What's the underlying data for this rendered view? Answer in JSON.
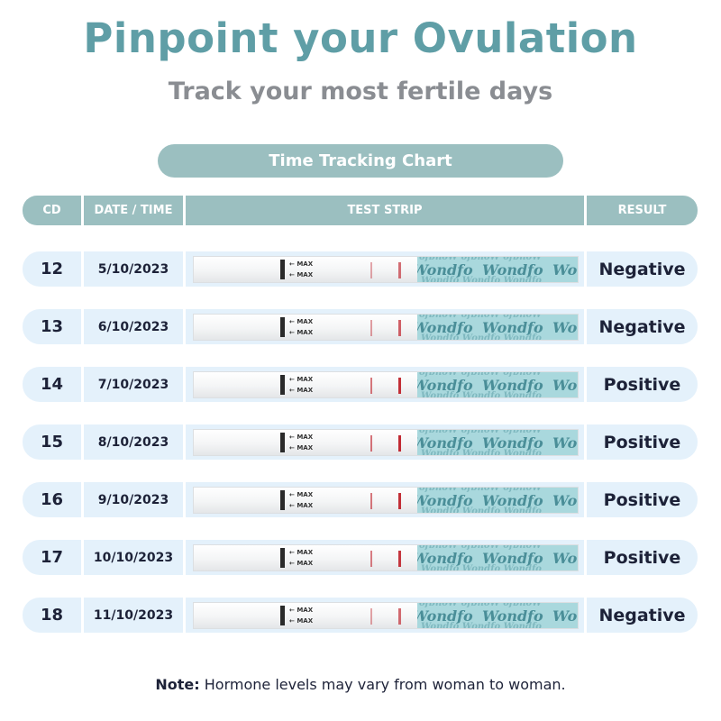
{
  "header": {
    "title": "Pinpoint your Ovulation",
    "subtitle": "Track your most fertile days",
    "chart_label": "Time Tracking Chart"
  },
  "columns": [
    "CD",
    "DATE / TIME",
    "TEST STRIP",
    "RESULT"
  ],
  "strip": {
    "max_label": "MAX",
    "brand": "Wondfo",
    "control_line_color": "#c0262f"
  },
  "rows": [
    {
      "cd": "12",
      "date": "5/10/2023",
      "result": "Negative",
      "test_line_intensity": 0.15
    },
    {
      "cd": "13",
      "date": "6/10/2023",
      "result": "Negative",
      "test_line_intensity": 0.3
    },
    {
      "cd": "14",
      "date": "7/10/2023",
      "result": "Positive",
      "test_line_intensity": 0.9
    },
    {
      "cd": "15",
      "date": "8/10/2023",
      "result": "Positive",
      "test_line_intensity": 0.95
    },
    {
      "cd": "16",
      "date": "9/10/2023",
      "result": "Positive",
      "test_line_intensity": 0.9
    },
    {
      "cd": "17",
      "date": "10/10/2023",
      "result": "Positive",
      "test_line_intensity": 0.8
    },
    {
      "cd": "18",
      "date": "11/10/2023",
      "result": "Negative",
      "test_line_intensity": 0.2
    }
  ],
  "note": {
    "label": "Note:",
    "text": " Hormone levels may vary from woman to woman."
  },
  "colors": {
    "title": "#5f9ea6",
    "header_bg": "#9bbfc0",
    "row_bg": "#e4f1fb",
    "text": "#1d2238"
  }
}
